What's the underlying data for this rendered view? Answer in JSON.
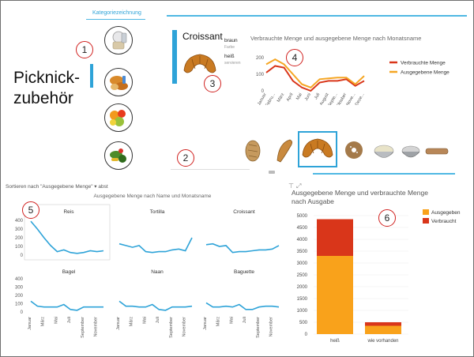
{
  "slicer": {
    "header": "Kategoriezeichnung",
    "title_line1": "Picknick-",
    "title_line2": "zubehör",
    "icons": [
      "utensils-category-icon",
      "bakery-category-icon",
      "fruit-category-icon",
      "vegetables-category-icon"
    ]
  },
  "card": {
    "name": "Croissant",
    "color_value": "braun",
    "color_label": "Farbe",
    "serve_value": "heiß",
    "serve_label": "servieren"
  },
  "callouts": [
    "1",
    "2",
    "3",
    "4",
    "5",
    "6"
  ],
  "line_chart": {
    "title": "Verbrauchte Menge und ausgegebene Menge nach Monatsname",
    "legend": [
      "Verbrauchte Menge",
      "Ausgegebene Menge"
    ],
    "legend_display": [
      "Verbrauchte Menge",
      "Ausgegebene Menge"
    ],
    "colors": [
      "#d9361a",
      "#f5a623"
    ],
    "y_ticks": [
      "200",
      "100",
      "0"
    ],
    "month_labels": [
      "Januar",
      "Februar",
      "März",
      "April",
      "Mai",
      "Juni",
      "Juli",
      "August",
      "September",
      "Oktober",
      "November",
      "Dezember"
    ],
    "month_display": [
      "Januar",
      "Febru...",
      "März",
      "April",
      "Mai",
      "Juni",
      "Juli",
      "August",
      "Septe...",
      "Oktober",
      "Nove...",
      "Deze..."
    ]
  },
  "thumbnails": [
    "bread-roll-icon",
    "baguette-icon",
    "croissant-icon",
    "bagel-icon",
    "rice-bowl-icon",
    "dip-bowl-icon",
    "tortilla-icon"
  ],
  "small_multiples": {
    "sort_label": "Sortieren nach \"Ausgegebene Menge\" ▾ abst",
    "title": "Ausgegebene Menge nach Name und Monatsname",
    "y_ticks": [
      "400",
      "300",
      "200",
      "100",
      "0"
    ],
    "panels": [
      "Reis",
      "Tortilla",
      "Croissant",
      "Bagel",
      "Naan",
      "Baguette"
    ],
    "x_labels": [
      "Januar",
      "März",
      "Mai",
      "Juli",
      "September",
      "November"
    ]
  },
  "bar_chart": {
    "title_line1": "Ausgegebene Menge und verbrauchte Menge",
    "title_line2": "nach Ausgabe",
    "y_ticks": [
      "5000",
      "4500",
      "4000",
      "3500",
      "3000",
      "2500",
      "2000",
      "1500",
      "1000",
      "500",
      "0"
    ],
    "legend": [
      "Ausgegebene Menge",
      "Verbrauchte Menge"
    ],
    "legend_display": [
      "Ausgegeben",
      "Verbraucht"
    ],
    "colors": [
      "#f9a21b",
      "#d9361a"
    ],
    "categories": [
      "heiß",
      "wie vorhanden"
    ]
  },
  "chart_data": [
    {
      "type": "line",
      "title": "Verbrauchte Menge und ausgegebene Menge nach Monatsname",
      "x": [
        "Januar",
        "Februar",
        "März",
        "April",
        "Mai",
        "Juni",
        "Juli",
        "August",
        "September",
        "Oktober",
        "November",
        "Dezember"
      ],
      "series": [
        {
          "name": "Verbrauchte Menge",
          "values": [
            110,
            150,
            140,
            60,
            20,
            0,
            50,
            60,
            60,
            70,
            30,
            60
          ]
        },
        {
          "name": "Ausgegebene Menge",
          "values": [
            160,
            190,
            160,
            100,
            40,
            20,
            70,
            75,
            80,
            80,
            40,
            90
          ]
        }
      ],
      "ylim": [
        0,
        200
      ],
      "legend": "right"
    },
    {
      "type": "line",
      "title": "Ausgegebene Menge nach Name und Monatsname",
      "x": [
        "Januar",
        "Februar",
        "März",
        "April",
        "Mai",
        "Juni",
        "Juli",
        "August",
        "September",
        "Oktober",
        "November",
        "Dezember"
      ],
      "ylim": [
        0,
        400
      ],
      "series": [
        {
          "name": "Reis",
          "values": [
            390,
            300,
            200,
            110,
            40,
            60,
            30,
            20,
            30,
            50,
            40,
            50
          ]
        },
        {
          "name": "Tortilla",
          "values": [
            130,
            110,
            90,
            110,
            40,
            30,
            40,
            40,
            60,
            70,
            50,
            200
          ]
        },
        {
          "name": "Croissant",
          "values": [
            120,
            130,
            100,
            110,
            30,
            40,
            40,
            50,
            60,
            60,
            70,
            110
          ]
        },
        {
          "name": "Bagel",
          "values": [
            130,
            70,
            60,
            60,
            60,
            90,
            30,
            20,
            60,
            60,
            60,
            60
          ]
        },
        {
          "name": "Naan",
          "values": [
            130,
            70,
            70,
            60,
            60,
            90,
            30,
            20,
            60,
            60,
            60,
            70
          ]
        },
        {
          "name": "Baguette",
          "values": [
            110,
            60,
            60,
            70,
            60,
            90,
            30,
            30,
            60,
            70,
            70,
            60
          ]
        }
      ]
    },
    {
      "type": "bar",
      "stacked": true,
      "title": "Ausgegebene Menge und verbrauchte Menge nach Ausgabe",
      "categories": [
        "heiß",
        "wie vorhanden"
      ],
      "series": [
        {
          "name": "Ausgegebene Menge",
          "values": [
            3300,
            350
          ]
        },
        {
          "name": "Verbrauchte Menge",
          "values": [
            1550,
            150
          ]
        }
      ],
      "ylim": [
        0,
        5000
      ],
      "legend": "top-right"
    }
  ]
}
